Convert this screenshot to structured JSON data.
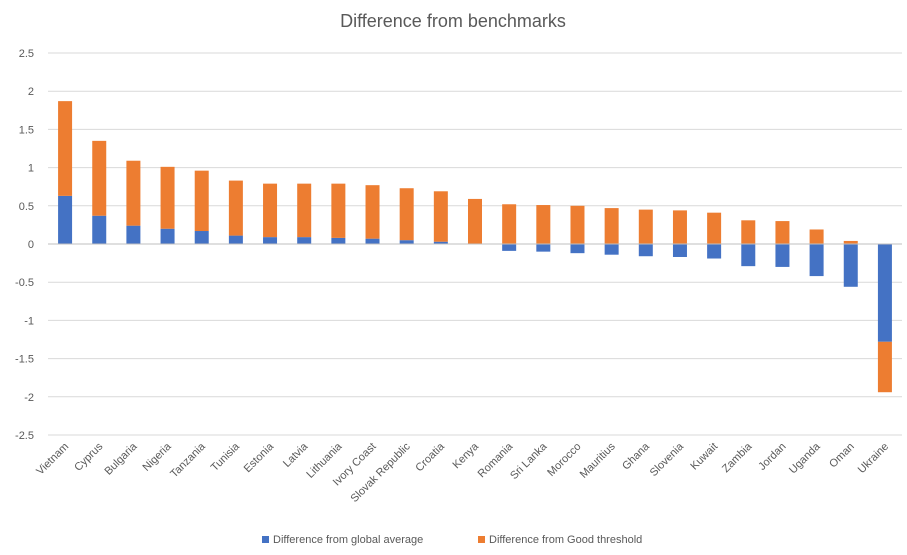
{
  "chart_data": {
    "type": "bar",
    "stacked": true,
    "title": "Difference from benchmarks",
    "xlabel": "",
    "ylabel": "",
    "ylim": [
      -2.5,
      2.5
    ],
    "yticks": [
      2.5,
      2,
      1.5,
      1,
      0.5,
      0,
      -0.5,
      -1,
      -1.5,
      -2,
      -2.5
    ],
    "ytick_labels": [
      "2.5",
      "2",
      "1.5",
      "1",
      "0.5",
      "0",
      "-0.5",
      "-1",
      "-1.5",
      "-2",
      "-2.5"
    ],
    "grid": true,
    "legend_position": "bottom",
    "categories": [
      "Vietnam",
      "Cyprus",
      "Bulgaria",
      "Nigeria",
      "Tanzania",
      "Tunisia",
      "Estonia",
      "Latvia",
      "Lithuania",
      "Ivory Coast",
      "Slovak Republic",
      "Croatia",
      "Kenya",
      "Romania",
      "Sri Lanka",
      "Morocco",
      "Mauritius",
      "Ghana",
      "Slovenia",
      "Kuwait",
      "Zambia",
      "Jordan",
      "Uganda",
      "Oman",
      "Ukraine"
    ],
    "series": [
      {
        "name": "Difference from global average",
        "color": "#4472c4",
        "values": [
          0.63,
          0.37,
          0.24,
          0.2,
          0.17,
          0.11,
          0.09,
          0.09,
          0.08,
          0.07,
          0.05,
          0.03,
          0.0,
          -0.09,
          -0.1,
          -0.12,
          -0.14,
          -0.16,
          -0.17,
          -0.19,
          -0.29,
          -0.3,
          -0.42,
          -0.56,
          -1.28
        ]
      },
      {
        "name": "Difference from Good threshold",
        "color": "#ed7d31",
        "values": [
          1.24,
          0.98,
          0.85,
          0.81,
          0.79,
          0.72,
          0.7,
          0.7,
          0.71,
          0.7,
          0.68,
          0.66,
          0.59,
          0.52,
          0.51,
          0.5,
          0.47,
          0.45,
          0.44,
          0.41,
          0.31,
          0.3,
          0.19,
          0.04,
          -0.66
        ]
      }
    ]
  }
}
